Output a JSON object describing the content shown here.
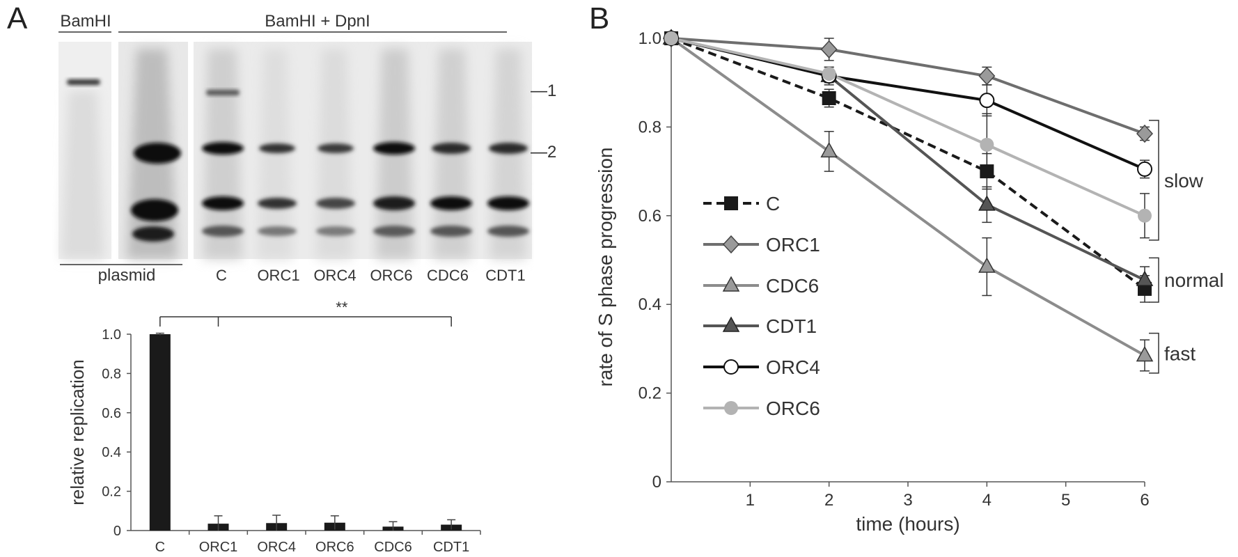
{
  "panels": {
    "a": "A",
    "b": "B"
  },
  "gel": {
    "header_left": "BamHI",
    "header_right": "BamHI + DpnI",
    "bottom_label": "plasmid",
    "lanes": [
      "C",
      "ORC1",
      "ORC4",
      "ORC6",
      "CDC6",
      "CDT1"
    ],
    "markers": [
      "—1",
      "—2"
    ]
  },
  "colors": {
    "bar": "#1a1a1a",
    "C": "#1a1a1a",
    "ORC1": "#6e6e6e",
    "CDC6": "#8c8c8c",
    "CDT1": "#555555",
    "ORC4": "#111111",
    "ORC6": "#b3b3b3"
  },
  "chart_data": [
    {
      "type": "bar",
      "categories": [
        "C",
        "ORC1",
        "ORC4",
        "ORC6",
        "CDC6",
        "CDT1"
      ],
      "values": [
        1.0,
        0.035,
        0.038,
        0.04,
        0.02,
        0.03
      ],
      "errors": [
        0.005,
        0.04,
        0.04,
        0.035,
        0.025,
        0.025
      ],
      "ylabel": "relative replication",
      "ylim": [
        0,
        1.0
      ],
      "yticks": [
        "0",
        "0.2",
        "0.4",
        "0.6",
        "0.8",
        "1.0"
      ],
      "significance": "**"
    },
    {
      "type": "line",
      "x": [
        0,
        2,
        4,
        6
      ],
      "xticks": [
        "1",
        "2",
        "3",
        "4",
        "5",
        "6"
      ],
      "xlabel": "time (hours)",
      "ylabel": "rate of S phase progression",
      "xlim": [
        0,
        6
      ],
      "ylim": [
        0,
        1.0
      ],
      "yticks": [
        "0",
        "0.2",
        "0.4",
        "0.6",
        "0.8",
        "1.0"
      ],
      "series": [
        {
          "name": "C",
          "values": [
            1.0,
            0.865,
            0.7,
            0.435
          ],
          "errors": [
            0,
            0.02,
            0.04,
            0.03
          ],
          "marker": "square",
          "dashed": true
        },
        {
          "name": "ORC1",
          "values": [
            1.0,
            0.975,
            0.915,
            0.785
          ],
          "errors": [
            0,
            0.025,
            0.02,
            0.015
          ],
          "marker": "diamond",
          "dashed": false
        },
        {
          "name": "CDC6",
          "values": [
            1.0,
            0.745,
            0.485,
            0.285
          ],
          "errors": [
            0,
            0.045,
            0.065,
            0.035
          ],
          "marker": "triangle-open",
          "dashed": false
        },
        {
          "name": "CDT1",
          "values": [
            1.0,
            0.915,
            0.625,
            0.455
          ],
          "errors": [
            0,
            0.02,
            0.04,
            0.03
          ],
          "marker": "triangle-filled",
          "dashed": false
        },
        {
          "name": "ORC4",
          "values": [
            1.0,
            0.915,
            0.86,
            0.705
          ],
          "errors": [
            0,
            0.015,
            0.035,
            0.02
          ],
          "marker": "circle-open",
          "dashed": false
        },
        {
          "name": "ORC6",
          "values": [
            1.0,
            0.92,
            0.76,
            0.6
          ],
          "errors": [
            0,
            0.015,
            0.07,
            0.05
          ],
          "marker": "circle-filled",
          "dashed": false
        }
      ],
      "annotations": [
        "slow",
        "normal",
        "fast"
      ]
    }
  ]
}
